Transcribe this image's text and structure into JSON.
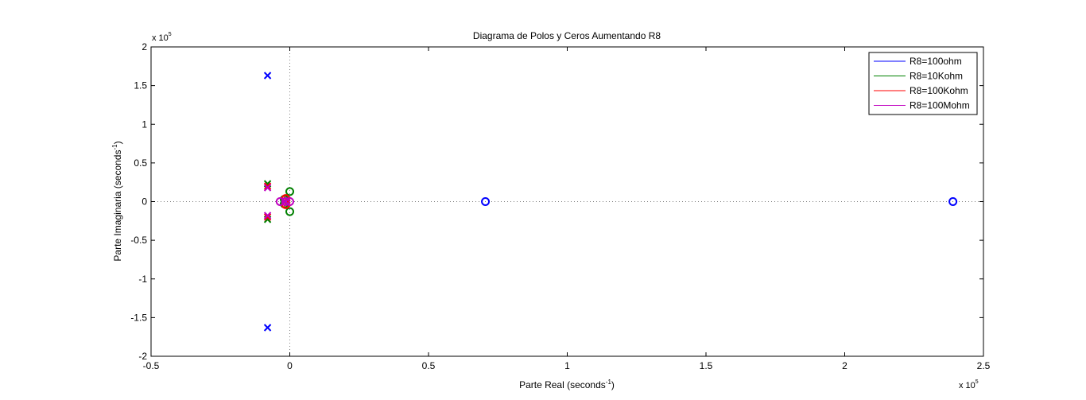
{
  "chart_data": {
    "type": "scatter",
    "title": "Diagrama de Polos y Ceros Aumentando R8",
    "xlabel": "Parte Real (seconds",
    "xlabel_sup": "-1",
    "xlabel_end": ")",
    "ylabel": "Parte Imaginaria (seconds",
    "ylabel_sup": "-1",
    "ylabel_end": ")",
    "x_exponent_base": "x 10",
    "x_exponent_power": "5",
    "y_exponent_base": "x 10",
    "y_exponent_power": "5",
    "xlim": [
      -0.5,
      2.5
    ],
    "ylim": [
      -2,
      2
    ],
    "x_ticks": [
      -0.5,
      0,
      0.5,
      1,
      1.5,
      2,
      2.5
    ],
    "x_tick_labels": [
      "-0.5",
      "0",
      "0.5",
      "1",
      "1.5",
      "2",
      "2.5"
    ],
    "y_ticks": [
      2,
      1.5,
      1,
      0.5,
      0,
      -0.5,
      -1,
      -1.5,
      -2
    ],
    "y_tick_labels": [
      "2",
      "1.5",
      "1",
      "0.5",
      "0",
      "-0.5",
      "-1",
      "-1.5",
      "-2"
    ],
    "grid": false,
    "reference_lines": true,
    "legend_position": "top-right",
    "series": [
      {
        "name": "R8=100ohm",
        "color": "#0000ff",
        "poles": [
          [
            -0.08,
            1.63
          ],
          [
            -0.08,
            -1.63
          ]
        ],
        "zeros": [
          [
            0.705,
            0
          ],
          [
            2.39,
            0
          ]
        ]
      },
      {
        "name": "R8=10Kohm",
        "color": "#008000",
        "poles": [
          [
            -0.08,
            0.23
          ],
          [
            -0.08,
            -0.23
          ]
        ],
        "zeros": [
          [
            0.0,
            0.13
          ],
          [
            0.0,
            -0.13
          ],
          [
            -0.02,
            0.03
          ],
          [
            -0.02,
            -0.03
          ]
        ]
      },
      {
        "name": "R8=100Kohm",
        "color": "#ff0000",
        "poles": [
          [
            -0.08,
            0.2
          ],
          [
            -0.08,
            -0.2
          ],
          [
            -0.01,
            0.02
          ],
          [
            -0.01,
            -0.02
          ]
        ],
        "zeros": [
          [
            -0.015,
            0.04
          ],
          [
            -0.015,
            -0.04
          ]
        ]
      },
      {
        "name": "R8=100Mohm",
        "color": "#bf00bf",
        "poles": [
          [
            -0.08,
            0.18
          ],
          [
            -0.08,
            -0.18
          ],
          [
            -0.015,
            0.0
          ]
        ],
        "zeros": [
          [
            -0.035,
            0.0
          ],
          [
            0.0,
            0.0
          ],
          [
            -0.015,
            0.0
          ]
        ]
      }
    ]
  }
}
